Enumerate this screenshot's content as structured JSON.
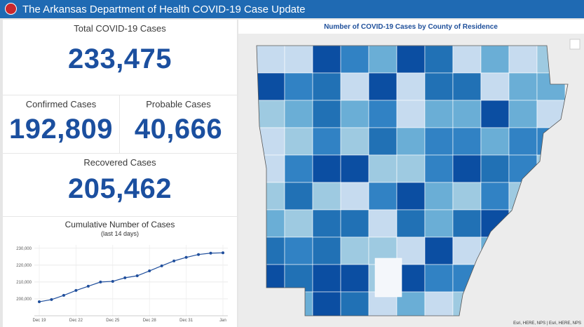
{
  "header": {
    "title": "The Arkansas Department of Health COVID-19 Case Update"
  },
  "cards": {
    "total": {
      "label": "Total COVID-19 Cases",
      "value": "233,475"
    },
    "confirmed": {
      "label": "Confirmed Cases",
      "value": "192,809"
    },
    "probable": {
      "label": "Probable Cases",
      "value": "40,666"
    },
    "recovered": {
      "label": "Recovered Cases",
      "value": "205,462"
    }
  },
  "chart_data": {
    "type": "line",
    "title": "Cumulative Number of Cases",
    "subtitle": "(last 14 days)",
    "categories": [
      "Dec 19",
      null,
      null,
      "Dec 22",
      null,
      null,
      "Dec 25",
      null,
      null,
      "Dec 28",
      null,
      null,
      "Dec 31",
      null,
      null,
      "Jan"
    ],
    "values": [
      198300,
      199600,
      202100,
      205000,
      207500,
      210000,
      210400,
      212500,
      213700,
      216600,
      219600,
      222500,
      224600,
      226300,
      227100,
      227300
    ],
    "color": "#1f4e9c",
    "ylim": [
      190000,
      232000
    ],
    "yticks": [
      {
        "value": 200000,
        "label": "200,000"
      },
      {
        "value": 210000,
        "label": "210,000"
      },
      {
        "value": 220000,
        "label": "220,000"
      },
      {
        "value": 230000,
        "label": "230,000"
      }
    ],
    "grid": true
  },
  "map": {
    "title": "Number of COVID-19 Cases by County of Residence",
    "attribution": "Esri, HERE, NPS | Esri, HERE, NPS"
  }
}
